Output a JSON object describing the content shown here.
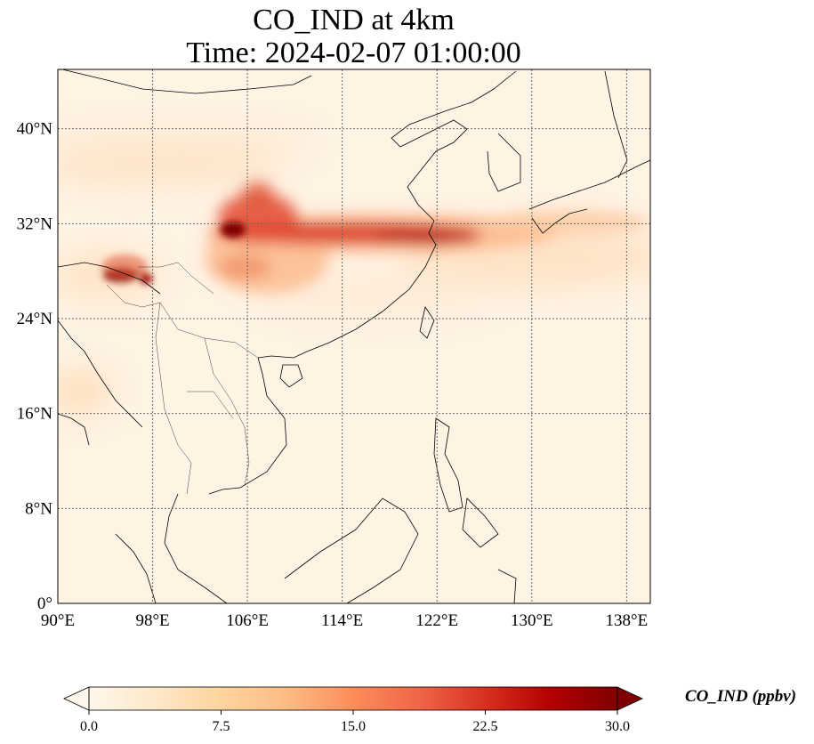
{
  "title": {
    "line1": "CO_IND at 4km",
    "line2": "Time: 2024-02-07 01:00:00"
  },
  "map": {
    "lon_range": [
      90,
      140
    ],
    "lat_range": [
      0,
      45
    ],
    "gridlines": "dotted",
    "lon_ticks": [
      {
        "value": 90,
        "label": "90°E"
      },
      {
        "value": 98,
        "label": "98°E"
      },
      {
        "value": 106,
        "label": "106°E"
      },
      {
        "value": 114,
        "label": "114°E"
      },
      {
        "value": 122,
        "label": "122°E"
      },
      {
        "value": 130,
        "label": "130°E"
      },
      {
        "value": 138,
        "label": "138°E"
      }
    ],
    "lat_ticks": [
      {
        "value": 0,
        "label": "0°"
      },
      {
        "value": 8,
        "label": "8°N"
      },
      {
        "value": 16,
        "label": "16°N"
      },
      {
        "value": 24,
        "label": "24°N"
      },
      {
        "value": 32,
        "label": "32°N"
      },
      {
        "value": 40,
        "label": "40°N"
      }
    ],
    "colormap": "OrRd",
    "features": [
      "coastlines",
      "country borders"
    ]
  },
  "colorbar": {
    "label": "CO_IND (ppbv)",
    "range": [
      0,
      30
    ],
    "extend": "both",
    "ticks": [
      "0.0",
      "7.5",
      "15.0",
      "22.5",
      "30.0"
    ],
    "colors": [
      "#fff7ec",
      "#fee8c8",
      "#fdd49e",
      "#fdbb84",
      "#fc8d59",
      "#ef6548",
      "#d7301f",
      "#b30000",
      "#7f0000"
    ]
  }
}
